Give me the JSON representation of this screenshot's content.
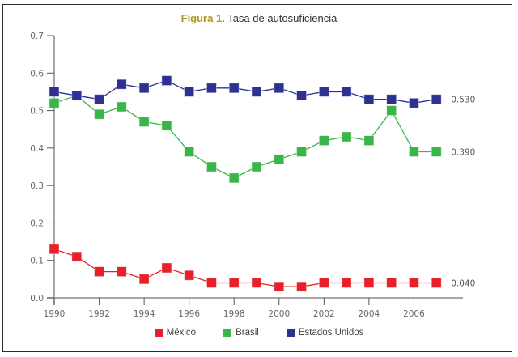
{
  "chart_data": {
    "type": "line",
    "title_prefix": "Figura 1.",
    "title": "Tasa de autosuficiencia",
    "xlabel": "",
    "ylabel": "",
    "x": [
      1990,
      1991,
      1992,
      1993,
      1994,
      1995,
      1996,
      1997,
      1998,
      1999,
      2000,
      2001,
      2002,
      2003,
      2004,
      2005,
      2006,
      2007
    ],
    "xlim": [
      1990,
      2008
    ],
    "ylim": [
      0.0,
      0.7
    ],
    "x_ticks": [
      "1990",
      "1992",
      "1994",
      "1996",
      "1998",
      "2000",
      "2002",
      "2004",
      "2006"
    ],
    "y_ticks": [
      "0.0",
      "0.1",
      "0.2",
      "0.3",
      "0.4",
      "0.5",
      "0.6",
      "0.7"
    ],
    "grid": false,
    "legend_position": "bottom",
    "series": [
      {
        "name": "México",
        "color": "#e8202a",
        "end_label": "0.040",
        "values": [
          0.13,
          0.11,
          0.07,
          0.07,
          0.05,
          0.08,
          0.06,
          0.04,
          0.04,
          0.04,
          0.03,
          0.03,
          0.04,
          0.04,
          0.04,
          0.04,
          0.04,
          0.04
        ]
      },
      {
        "name": "Brasil",
        "color": "#3ab54a",
        "end_label": "0.390",
        "values": [
          0.52,
          0.54,
          0.49,
          0.51,
          0.47,
          0.46,
          0.39,
          0.35,
          0.32,
          0.35,
          0.37,
          0.39,
          0.42,
          0.43,
          0.42,
          0.5,
          0.39,
          0.39
        ]
      },
      {
        "name": "Estados Unidos",
        "color": "#2e3192",
        "end_label": "0.530",
        "values": [
          0.55,
          0.54,
          0.53,
          0.57,
          0.56,
          0.58,
          0.55,
          0.56,
          0.56,
          0.55,
          0.56,
          0.54,
          0.55,
          0.55,
          0.53,
          0.53,
          0.52,
          0.53
        ]
      }
    ]
  }
}
